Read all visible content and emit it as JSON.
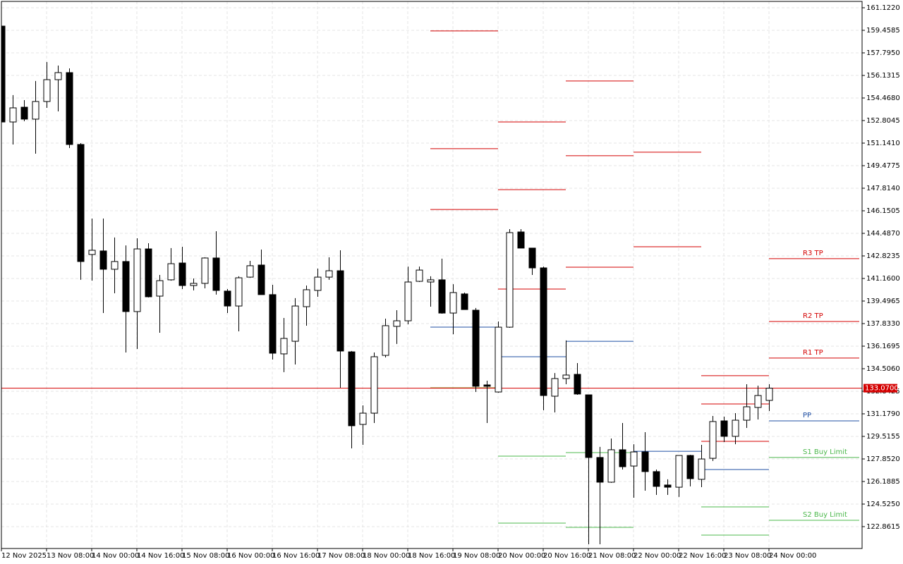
{
  "chart_data": {
    "type": "candlestick",
    "ylim": [
      121.25,
      161.59
    ],
    "yticks": [
      {
        "value": 161.122,
        "label": "161.1220"
      },
      159.4585,
      {
        "value": 157.795,
        "label": "157.7950"
      },
      156.1315,
      {
        "value": 154.468,
        "label": "154.4680"
      },
      152.8045,
      {
        "value": 151.141,
        "label": "151.1410"
      },
      149.4775,
      {
        "value": 147.814,
        "label": "147.8140"
      },
      146.1505,
      {
        "value": 144.487,
        "label": "144.4870"
      },
      142.8235,
      {
        "value": 141.16,
        "label": "141.1600"
      },
      139.4965,
      {
        "value": 137.833,
        "label": "137.8330"
      },
      136.1695,
      {
        "value": 134.506,
        "label": "134.5060"
      },
      132.8425,
      {
        "value": 131.179,
        "label": "131.1790"
      },
      129.5155,
      {
        "value": 127.852,
        "label": "127.8520"
      },
      126.1885,
      {
        "value": 124.525,
        "label": "124.5250"
      },
      122.8615
    ],
    "x_labels": [
      "12 Nov 2025",
      "13 Nov 08:00",
      "14 Nov 00:00",
      "14 Nov 16:00",
      "15 Nov 08:00",
      "16 Nov 00:00",
      "16 Nov 16:00",
      "17 Nov 08:00",
      "18 Nov 00:00",
      "18 Nov 16:00",
      "19 Nov 08:00",
      "20 Nov 00:00",
      "20 Nov 16:00",
      "21 Nov 08:00",
      "22 Nov 00:00",
      "22 Nov 16:00",
      "23 Nov 08:00",
      "24 Nov 00:00"
    ],
    "grid": true,
    "up_color": "#ffffff",
    "down_color": "#000000",
    "candles": {
      "open": [
        159.77,
        152.7,
        153.79,
        152.91,
        154.21,
        155.82,
        156.34,
        151.04,
        142.93,
        143.19,
        141.84,
        142.41,
        138.72,
        143.34,
        139.86,
        141.06,
        142.3,
        140.64,
        140.8,
        142.67,
        140.23,
        139.13,
        141.26,
        142.15,
        139.97,
        135.6,
        136.53,
        139.08,
        140.28,
        141.26,
        141.73,
        135.75,
        130.4,
        131.23,
        135.49,
        137.63,
        138.04,
        140.95,
        140.9,
        141.06,
        138.61,
        140.02,
        138.82,
        133.31,
        132.79,
        137.57,
        144.59,
        143.4,
        141.94,
        132.48,
        133.78,
        134.09,
        132.58,
        127.96,
        126.14,
        128.53,
        127.33,
        128.37,
        126.92,
        125.93,
        125.77,
        128.11,
        126.35,
        127.9,
        130.66,
        129.52,
        130.71,
        131.65,
        132.17
      ],
      "high": [
        159.77,
        154.68,
        154.31,
        155.72,
        157.12,
        156.86,
        156.65,
        151.14,
        145.58,
        145.58,
        144.18,
        143.6,
        144.12,
        143.76,
        141.42,
        143.4,
        143.5,
        141.16,
        142.72,
        144.64,
        140.38,
        141.32,
        142.46,
        143.29,
        140.69,
        138.25,
        139.71,
        140.64,
        141.89,
        142.72,
        143.24,
        135.81,
        131.8,
        135.7,
        138.2,
        138.82,
        142.04,
        142.04,
        141.32,
        142.62,
        140.74,
        140.12,
        138.98,
        133.62,
        137.99,
        144.8,
        144.8,
        143.4,
        142.04,
        134.19,
        136.59,
        134.92,
        132.58,
        128.74,
        129.36,
        130.5,
        128.94,
        129.83,
        127.07,
        126.35,
        128.11,
        128.16,
        128.89,
        131.02,
        130.97,
        131.23,
        133.36,
        133.26,
        133.36
      ],
      "low": [
        152.7,
        151.04,
        152.75,
        150.36,
        153.74,
        153.48,
        150.78,
        141.06,
        141.0,
        138.61,
        140.07,
        135.7,
        135.96,
        139.76,
        137.16,
        141.0,
        140.38,
        140.28,
        140.43,
        139.97,
        138.61,
        137.26,
        141.21,
        139.97,
        135.18,
        134.25,
        134.82,
        137.68,
        139.81,
        141.06,
        133.1,
        128.63,
        128.89,
        130.5,
        135.34,
        136.33,
        137.78,
        140.9,
        139.08,
        138.56,
        137.05,
        138.87,
        132.79,
        130.5,
        132.74,
        137.52,
        143.4,
        141.42,
        131.44,
        131.28,
        133.36,
        132.58,
        121.56,
        121.56,
        126.09,
        127.07,
        124.99,
        125.51,
        125.2,
        125.2,
        125.05,
        125.83,
        125.77,
        127.7,
        129.1,
        128.94,
        130.14,
        130.76,
        131.39
      ],
      "close": [
        152.7,
        153.74,
        152.91,
        154.21,
        155.82,
        156.34,
        151.04,
        142.41,
        143.24,
        141.84,
        142.41,
        138.72,
        143.34,
        139.81,
        141.0,
        142.25,
        140.64,
        140.8,
        142.67,
        140.28,
        139.13,
        141.21,
        142.1,
        139.97,
        135.65,
        136.74,
        139.13,
        140.33,
        141.26,
        141.73,
        135.81,
        130.3,
        131.23,
        135.39,
        137.68,
        138.04,
        140.9,
        141.78,
        141.06,
        138.61,
        140.12,
        138.87,
        133.21,
        133.21,
        137.57,
        144.54,
        143.4,
        141.94,
        132.53,
        133.78,
        134.04,
        132.64,
        127.96,
        126.14,
        128.53,
        127.28,
        128.37,
        126.92,
        125.83,
        125.77,
        128.11,
        126.4,
        127.85,
        130.61,
        129.52,
        130.71,
        131.7,
        132.53,
        133.07
      ]
    },
    "current_price": {
      "value": 133.07,
      "label": "133.0700",
      "color": "#d40000"
    },
    "level_segments": [
      {
        "start": 38,
        "levels": [
          {
            "value": 159.41,
            "color": "#d40000"
          },
          {
            "value": 150.73,
            "color": "#d40000"
          },
          {
            "value": 146.25,
            "color": "#d40000"
          },
          {
            "value": 137.57,
            "color": "#1f4fa3"
          },
          {
            "value": 133.1,
            "color": "#8c8c1c"
          }
        ]
      },
      {
        "start": 44,
        "levels": [
          {
            "value": 152.7,
            "color": "#d40000"
          },
          {
            "value": 147.71,
            "color": "#d40000"
          },
          {
            "value": 140.38,
            "color": "#d40000"
          },
          {
            "value": 135.39,
            "color": "#1f4fa3"
          },
          {
            "value": 128.06,
            "color": "#4cb84c"
          },
          {
            "value": 123.12,
            "color": "#4cb84c"
          }
        ]
      },
      {
        "start": 50,
        "levels": [
          {
            "value": 155.72,
            "color": "#d40000"
          },
          {
            "value": 150.21,
            "color": "#d40000"
          },
          {
            "value": 141.99,
            "color": "#d40000"
          },
          {
            "value": 136.53,
            "color": "#1f4fa3"
          },
          {
            "value": 128.32,
            "color": "#4cb84c"
          },
          {
            "value": 122.81,
            "color": "#4cb84c"
          }
        ]
      },
      {
        "start": 56,
        "levels": [
          {
            "value": 150.47,
            "color": "#d40000"
          },
          {
            "value": 143.5,
            "color": "#d40000"
          },
          {
            "value": 128.42,
            "color": "#1f4fa3"
          }
        ]
      },
      {
        "start": 62,
        "levels": [
          {
            "value": 133.99,
            "color": "#d40000"
          },
          {
            "value": 131.91,
            "color": "#d40000"
          },
          {
            "value": 129.15,
            "color": "#d40000"
          },
          {
            "value": 127.07,
            "color": "#1f4fa3"
          },
          {
            "value": 124.32,
            "color": "#4cb84c"
          },
          {
            "value": 122.24,
            "color": "#4cb84c"
          }
        ]
      },
      {
        "start": 68,
        "levels": [
          {
            "value": 142.62,
            "color": "#d40000",
            "label": "R3 TP"
          },
          {
            "value": 137.99,
            "color": "#d40000",
            "label": "R2 TP"
          },
          {
            "value": 135.29,
            "color": "#d40000",
            "label": "R1 TP"
          },
          {
            "value": 130.66,
            "color": "#1f4fa3",
            "label": "PP"
          },
          {
            "value": 127.96,
            "color": "#4cb84c",
            "label": "S1 Buy Limit"
          },
          {
            "value": 123.33,
            "color": "#4cb84c",
            "label": "S2 Buy Limit"
          }
        ]
      }
    ]
  }
}
